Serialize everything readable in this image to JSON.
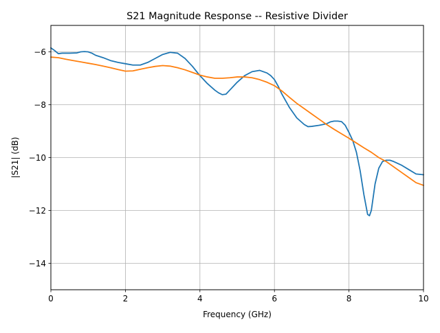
{
  "chart_data": {
    "type": "line",
    "title": "S21 Magnitude Response -- Resistive Divider",
    "xlabel": "Frequency (GHz)",
    "ylabel": "|S21| (dB)",
    "xlim": [
      0,
      10
    ],
    "ylim": [
      -15,
      -5
    ],
    "xticks": [
      0,
      2,
      4,
      6,
      8,
      10
    ],
    "xtick_labels": [
      "0",
      "2",
      "4",
      "6",
      "8",
      "10"
    ],
    "yticks": [
      -14,
      -12,
      -10,
      -8,
      -6
    ],
    "ytick_labels": [
      "−14",
      "−12",
      "−10",
      "−8",
      "−6"
    ],
    "grid": true,
    "legend": "none",
    "series": [
      {
        "color": "#1f77b4",
        "x": [
          0,
          0.1,
          0.2,
          0.3,
          0.5,
          0.7,
          0.8,
          0.9,
          1.0,
          1.1,
          1.2,
          1.4,
          1.6,
          1.8,
          2.0,
          2.2,
          2.4,
          2.6,
          2.8,
          3.0,
          3.2,
          3.4,
          3.6,
          3.8,
          4.0,
          4.2,
          4.4,
          4.5,
          4.6,
          4.7,
          4.8,
          5.0,
          5.2,
          5.4,
          5.6,
          5.8,
          5.9,
          6.0,
          6.1,
          6.2,
          6.4,
          6.6,
          6.8,
          6.9,
          7.0,
          7.2,
          7.4,
          7.5,
          7.6,
          7.7,
          7.8,
          7.9,
          8.0,
          8.1,
          8.2,
          8.3,
          8.4,
          8.5,
          8.55,
          8.6,
          8.7,
          8.8,
          8.9,
          9.0,
          9.1,
          9.2,
          9.4,
          9.6,
          9.8,
          10.0
        ],
        "y": [
          -5.85,
          -5.95,
          -6.07,
          -6.05,
          -6.05,
          -6.04,
          -6.0,
          -5.99,
          -6.0,
          -6.05,
          -6.13,
          -6.22,
          -6.33,
          -6.4,
          -6.45,
          -6.5,
          -6.5,
          -6.4,
          -6.25,
          -6.1,
          -6.02,
          -6.05,
          -6.25,
          -6.55,
          -6.9,
          -7.2,
          -7.45,
          -7.55,
          -7.62,
          -7.6,
          -7.45,
          -7.15,
          -6.9,
          -6.75,
          -6.7,
          -6.8,
          -6.9,
          -7.05,
          -7.3,
          -7.6,
          -8.1,
          -8.5,
          -8.75,
          -8.83,
          -8.82,
          -8.78,
          -8.72,
          -8.65,
          -8.62,
          -8.62,
          -8.64,
          -8.78,
          -9.05,
          -9.35,
          -9.8,
          -10.5,
          -11.4,
          -12.15,
          -12.2,
          -12.0,
          -11.0,
          -10.4,
          -10.15,
          -10.1,
          -10.1,
          -10.15,
          -10.28,
          -10.45,
          -10.62,
          -10.65
        ]
      },
      {
        "color": "#ff7f0e",
        "x": [
          0,
          0.2,
          0.4,
          0.6,
          0.8,
          1.0,
          1.2,
          1.4,
          1.6,
          1.8,
          2.0,
          2.2,
          2.4,
          2.6,
          2.8,
          3.0,
          3.2,
          3.4,
          3.6,
          3.8,
          4.0,
          4.2,
          4.4,
          4.6,
          4.8,
          5.0,
          5.2,
          5.4,
          5.6,
          5.8,
          6.0,
          6.2,
          6.4,
          6.6,
          6.8,
          7.0,
          7.2,
          7.4,
          7.6,
          7.8,
          8.0,
          8.2,
          8.4,
          8.6,
          8.8,
          9.0,
          9.2,
          9.4,
          9.6,
          9.8,
          10.0
        ],
        "y": [
          -6.2,
          -6.22,
          -6.28,
          -6.33,
          -6.38,
          -6.43,
          -6.48,
          -6.54,
          -6.6,
          -6.67,
          -6.73,
          -6.72,
          -6.66,
          -6.6,
          -6.55,
          -6.52,
          -6.54,
          -6.6,
          -6.68,
          -6.78,
          -6.88,
          -6.95,
          -7.0,
          -7.0,
          -6.98,
          -6.95,
          -6.95,
          -6.98,
          -7.05,
          -7.15,
          -7.28,
          -7.48,
          -7.72,
          -7.95,
          -8.15,
          -8.35,
          -8.55,
          -8.75,
          -8.93,
          -9.1,
          -9.27,
          -9.45,
          -9.63,
          -9.8,
          -10.0,
          -10.15,
          -10.35,
          -10.55,
          -10.75,
          -10.95,
          -11.05
        ]
      }
    ]
  }
}
